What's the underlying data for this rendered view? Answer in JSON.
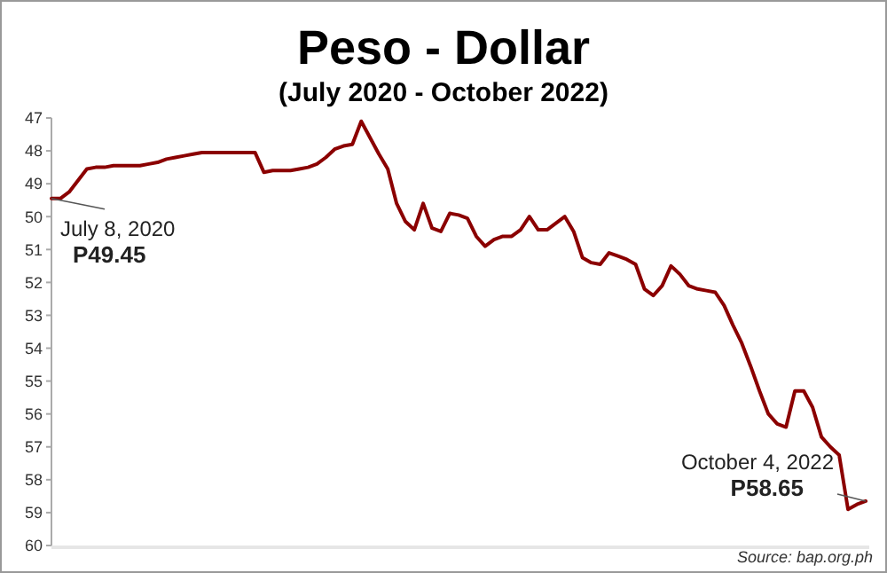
{
  "chart_data": {
    "type": "line",
    "title": "Peso - Dollar",
    "subtitle": "(July 2020 - October 2022)",
    "categories": [
      null,
      null,
      null,
      null,
      null,
      null,
      null,
      null,
      null,
      null,
      null,
      null,
      null,
      null,
      null,
      null,
      null,
      null,
      null,
      null,
      null,
      null,
      null,
      null,
      null,
      null,
      null,
      null,
      null,
      null,
      null,
      null,
      null,
      null,
      null,
      null,
      null,
      null,
      null,
      null,
      null,
      null,
      null,
      null,
      null,
      null,
      null,
      null,
      null,
      null,
      null,
      null,
      null,
      null,
      null,
      null,
      null,
      null,
      null,
      null,
      null,
      null,
      null,
      null,
      null,
      null,
      null,
      null,
      null,
      null,
      null,
      null,
      null,
      null,
      null,
      null,
      null,
      null,
      null,
      null,
      null,
      null,
      null,
      null,
      null,
      null,
      null,
      null,
      null,
      null,
      null,
      null,
      null
    ],
    "series": [
      {
        "color": "#8b0000",
        "values": [
          49.45,
          49.45,
          49.25,
          48.9,
          48.55,
          48.5,
          48.5,
          48.45,
          48.45,
          48.45,
          48.45,
          48.4,
          48.35,
          48.25,
          48.2,
          48.15,
          48.1,
          48.05,
          48.05,
          48.05,
          48.05,
          48.05,
          48.05,
          48.05,
          48.65,
          48.6,
          48.6,
          48.6,
          48.55,
          48.5,
          48.4,
          48.2,
          47.95,
          47.85,
          47.8,
          47.1,
          47.6,
          48.1,
          48.55,
          49.6,
          50.15,
          50.4,
          49.6,
          50.35,
          50.45,
          49.9,
          49.95,
          50.05,
          50.6,
          50.9,
          50.7,
          50.6,
          50.6,
          50.4,
          50.0,
          50.4,
          50.4,
          50.2,
          50.0,
          50.45,
          51.25,
          51.4,
          51.45,
          51.1,
          51.2,
          51.3,
          51.45,
          52.2,
          52.4,
          52.1,
          51.5,
          51.75,
          52.1,
          52.2,
          52.25,
          52.3,
          52.7,
          53.3,
          53.85,
          54.55,
          55.3,
          56.0,
          56.3,
          56.4,
          55.3,
          55.3,
          55.8,
          56.7,
          57.0,
          57.25,
          58.9,
          58.75,
          58.65
        ]
      }
    ],
    "ylim": [
      60,
      47
    ],
    "yticks": [
      47,
      48,
      49,
      50,
      51,
      52,
      53,
      54,
      55,
      56,
      57,
      58,
      59,
      60
    ],
    "tick_labels": "y",
    "grid": false,
    "line_style": "solid",
    "marker": "none",
    "annotations": [
      "July 8, 2020",
      "P49.45",
      "October 4, 2022",
      "P58.65",
      "Source: bap.org.ph"
    ]
  }
}
